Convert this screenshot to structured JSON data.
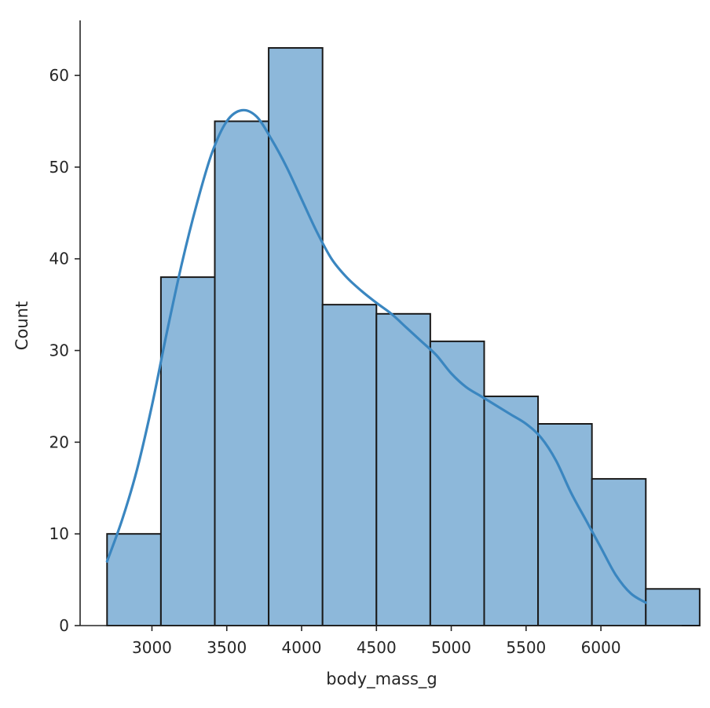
{
  "chart_data": {
    "type": "bar",
    "subtype": "histogram-with-kde",
    "title": "",
    "xlabel": "body_mass_g",
    "ylabel": "Count",
    "xlim": [
      2520,
      6540
    ],
    "ylim": [
      0,
      66
    ],
    "x_ticks": [
      3000,
      3500,
      4000,
      4500,
      5000,
      5500,
      6000
    ],
    "y_ticks": [
      0,
      10,
      20,
      30,
      40,
      50,
      60
    ],
    "bins": [
      {
        "start": 2700,
        "end": 3060,
        "count": 10
      },
      {
        "start": 3060,
        "end": 3420,
        "count": 38
      },
      {
        "start": 3420,
        "end": 3780,
        "count": 55
      },
      {
        "start": 3780,
        "end": 4140,
        "count": 63
      },
      {
        "start": 4140,
        "end": 4500,
        "count": 35
      },
      {
        "start": 4500,
        "end": 4860,
        "count": 34
      },
      {
        "start": 4860,
        "end": 5220,
        "count": 31
      },
      {
        "start": 5220,
        "end": 5580,
        "count": 25
      },
      {
        "start": 5580,
        "end": 5940,
        "count": 22
      },
      {
        "start": 5940,
        "end": 6300,
        "count": 16
      },
      {
        "start": 6300,
        "end": 6660,
        "count": 4
      }
    ],
    "kde": {
      "x": [
        2700,
        2800,
        2900,
        3000,
        3100,
        3200,
        3300,
        3400,
        3500,
        3600,
        3700,
        3800,
        3900,
        4000,
        4100,
        4200,
        4300,
        4400,
        4500,
        4600,
        4700,
        4800,
        4900,
        5000,
        5100,
        5200,
        5300,
        5400,
        5500,
        5600,
        5700,
        5800,
        5900,
        6000,
        6100,
        6200,
        6300
      ],
      "y": [
        7,
        11.5,
        17,
        24,
        32,
        39.5,
        46,
        51.5,
        55,
        56.2,
        55.5,
        53,
        50,
        46.5,
        43,
        40,
        38,
        36.5,
        35.2,
        34,
        32.5,
        31,
        29.5,
        27.5,
        26,
        25,
        24,
        23,
        22,
        20.5,
        18,
        14.5,
        11.5,
        8.5,
        5.5,
        3.5,
        2.5
      ]
    },
    "grid": false,
    "legend": "none",
    "bar_color": "#8db8da",
    "line_color": "#3a86c0"
  }
}
